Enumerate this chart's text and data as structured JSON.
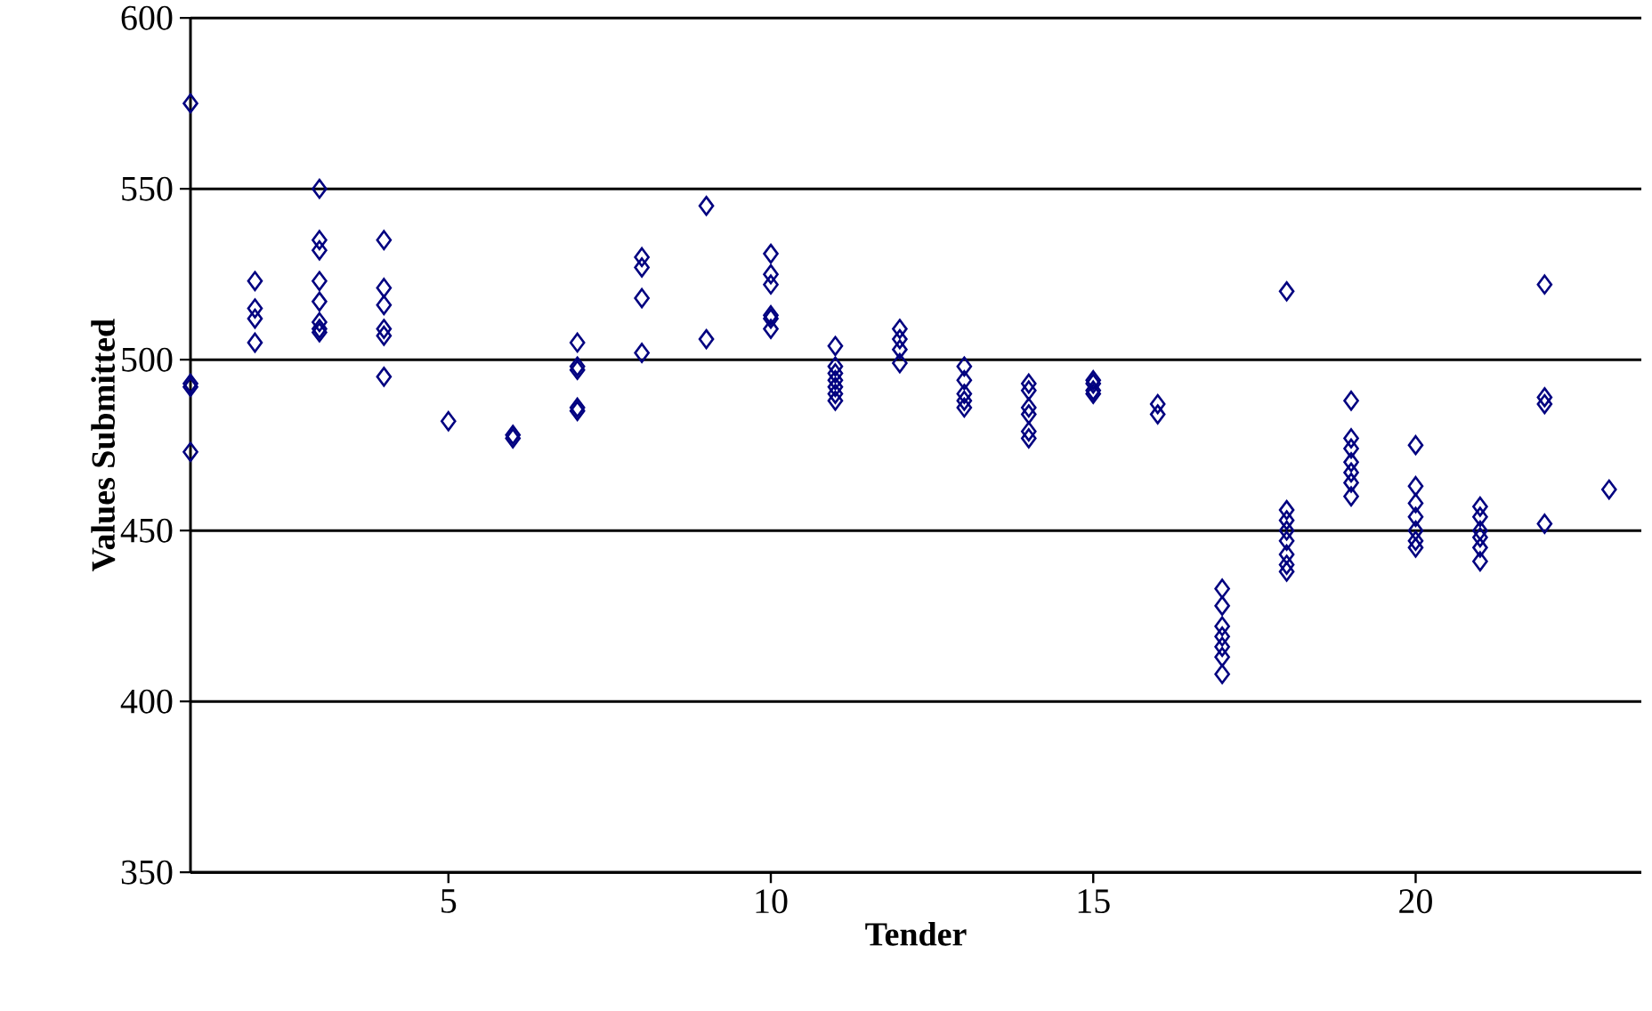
{
  "chart_data": {
    "type": "scatter",
    "xlabel": "Tender",
    "ylabel": "Values Submitted",
    "xlim": [
      1,
      23.5
    ],
    "xticks": [
      5,
      10,
      15,
      20
    ],
    "ylim": [
      350,
      600
    ],
    "yticks": [
      350,
      400,
      450,
      500,
      550,
      600
    ],
    "grid": "y",
    "marker": "diamond",
    "series": [
      {
        "color": "#000080",
        "x": [
          1,
          1,
          1,
          1,
          2,
          2,
          2,
          2,
          3,
          3,
          3,
          3,
          3,
          3,
          3,
          3,
          4,
          4,
          4,
          4,
          4,
          4,
          5,
          6,
          6,
          7,
          7,
          7,
          7,
          7,
          8,
          8,
          8,
          8,
          9,
          9,
          10,
          10,
          10,
          10,
          10,
          10,
          11,
          11,
          11,
          11,
          11,
          11,
          11,
          12,
          12,
          12,
          12,
          13,
          13,
          13,
          13,
          13,
          14,
          14,
          14,
          14,
          14,
          14,
          15,
          15,
          15,
          15,
          16,
          16,
          17,
          17,
          17,
          17,
          17,
          17,
          17,
          18,
          18,
          18,
          18,
          18,
          18,
          18,
          18,
          19,
          19,
          19,
          19,
          19,
          19,
          19,
          20,
          20,
          20,
          20,
          20,
          20,
          20,
          21,
          21,
          21,
          21,
          21,
          21,
          22,
          22,
          22,
          22,
          23
        ],
        "values": [
          575,
          493,
          492,
          473,
          523,
          515,
          512,
          505,
          550,
          535,
          532,
          523,
          517,
          511,
          509,
          508,
          535,
          521,
          516,
          509,
          507,
          495,
          482,
          478,
          477,
          505,
          498,
          497,
          486,
          485,
          530,
          527,
          518,
          502,
          545,
          506,
          531,
          525,
          522,
          513,
          512,
          509,
          504,
          498,
          496,
          494,
          492,
          490,
          488,
          509,
          506,
          503,
          499,
          498,
          494,
          490,
          488,
          486,
          493,
          491,
          486,
          484,
          479,
          477,
          494,
          493,
          491,
          490,
          487,
          484,
          433,
          428,
          422,
          419,
          416,
          413,
          408,
          520,
          456,
          453,
          450,
          447,
          443,
          440,
          438,
          488,
          477,
          474,
          470,
          467,
          464,
          460,
          475,
          463,
          458,
          454,
          450,
          447,
          445,
          457,
          454,
          450,
          448,
          445,
          441,
          522,
          489,
          487,
          452,
          462
        ]
      }
    ]
  }
}
